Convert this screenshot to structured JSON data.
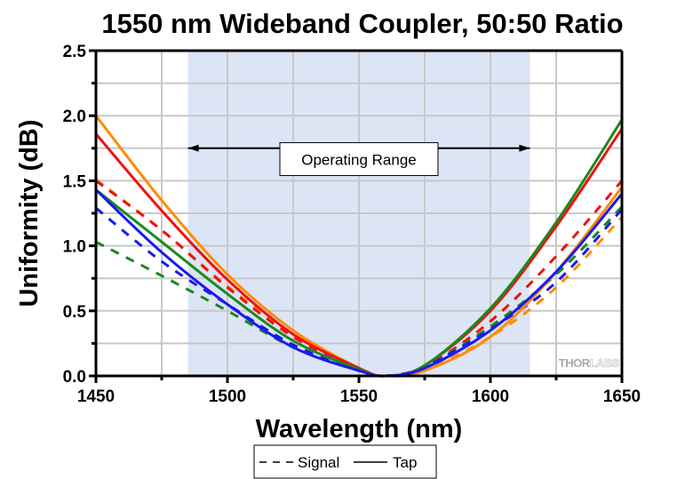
{
  "chart_data": {
    "type": "line",
    "title": "1550 nm Wideband Coupler, 50:50 Ratio",
    "xlabel": "Wavelength (nm)",
    "ylabel": "Uniformity (dB)",
    "xlim": [
      1450,
      1650
    ],
    "ylim": [
      0,
      2.5
    ],
    "xticks": [
      1450,
      1500,
      1550,
      1600,
      1650
    ],
    "xtick_labels": [
      "1450",
      "1500",
      "1550",
      "1600",
      "1650"
    ],
    "x_minor_ticks": [
      1475,
      1525,
      1575,
      1625
    ],
    "yticks": [
      0.0,
      0.5,
      1.0,
      1.5,
      2.0,
      2.5
    ],
    "ytick_labels": [
      "0.0",
      "0.5",
      "1.0",
      "1.5",
      "2.0",
      "2.5"
    ],
    "y_minor_ticks": [
      0.25,
      0.75,
      1.25,
      1.75,
      2.25
    ],
    "grid": true,
    "shaded_region": {
      "x_range": [
        1485,
        1615
      ],
      "color": "#dce5f5",
      "label": "Operating Range"
    },
    "annotation": {
      "text": "Operating Range",
      "arrow_x_range": [
        1485,
        1615
      ],
      "arrow_y": 1.75,
      "box_center_x": 1550,
      "box_y": 1.54
    },
    "watermark": {
      "text_dark": "THOR",
      "text_light": "LABS"
    },
    "legend": {
      "placement": "bottom-center-outside",
      "entries": [
        {
          "label": "Signal",
          "style": "dashed"
        },
        {
          "label": "Tap",
          "style": "solid"
        }
      ]
    },
    "x": [
      1450,
      1475,
      1500,
      1525,
      1550,
      1560,
      1575,
      1600,
      1625,
      1650
    ],
    "series": [
      {
        "name": "Tap (orange)",
        "color": "#ff8c00",
        "style": "solid",
        "values": [
          2.0,
          1.35,
          0.78,
          0.35,
          0.06,
          0.0,
          0.04,
          0.3,
          0.8,
          1.45
        ]
      },
      {
        "name": "Tap (red)",
        "color": "#ee1111",
        "style": "solid",
        "values": [
          1.86,
          1.27,
          0.74,
          0.32,
          0.06,
          0.0,
          0.08,
          0.5,
          1.15,
          1.9
        ]
      },
      {
        "name": "Tap (green)",
        "color": "#1a8a1a",
        "style": "solid",
        "values": [
          1.43,
          1.03,
          0.63,
          0.27,
          0.05,
          0.0,
          0.08,
          0.52,
          1.18,
          1.97
        ]
      },
      {
        "name": "Tap (blue)",
        "color": "#1a1aee",
        "style": "solid",
        "values": [
          1.43,
          0.95,
          0.55,
          0.22,
          0.04,
          0.0,
          0.06,
          0.35,
          0.8,
          1.4
        ]
      },
      {
        "name": "Signal (orange)",
        "color": "#ff8c00",
        "style": "dashed",
        "values": [
          1.51,
          1.12,
          0.69,
          0.32,
          0.05,
          0.0,
          0.05,
          0.3,
          0.68,
          1.22
        ]
      },
      {
        "name": "Signal (red)",
        "color": "#ee1111",
        "style": "dashed",
        "values": [
          1.5,
          1.12,
          0.68,
          0.3,
          0.05,
          0.0,
          0.07,
          0.42,
          0.92,
          1.5
        ]
      },
      {
        "name": "Signal (green)",
        "color": "#1a8a1a",
        "style": "dashed",
        "values": [
          1.03,
          0.77,
          0.5,
          0.22,
          0.04,
          0.0,
          0.07,
          0.38,
          0.78,
          1.3
        ]
      },
      {
        "name": "Signal (blue)",
        "color": "#1a1aee",
        "style": "dashed",
        "values": [
          1.29,
          0.88,
          0.55,
          0.24,
          0.04,
          0.0,
          0.07,
          0.36,
          0.72,
          1.28
        ]
      }
    ]
  }
}
